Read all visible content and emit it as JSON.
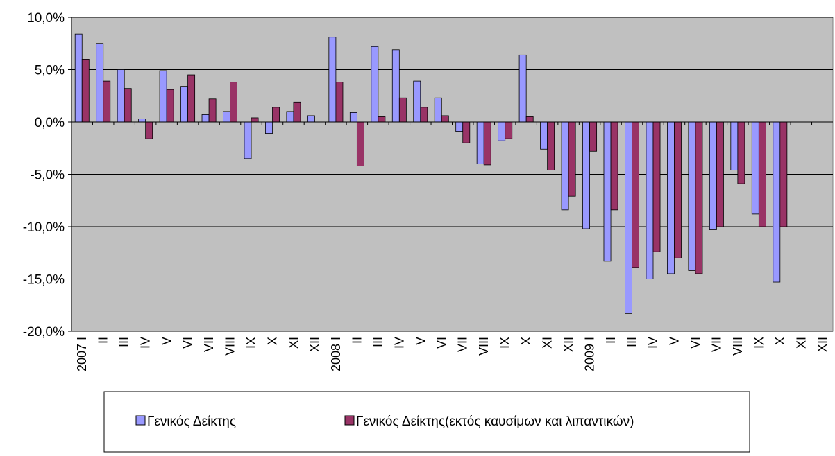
{
  "chart_data": {
    "type": "bar",
    "categories": [
      "2007 I",
      "II",
      "III",
      "IV",
      "V",
      "VI",
      "VII",
      "VIII",
      "IX",
      "X",
      "XI",
      "XII",
      "2008 I",
      "II",
      "III",
      "IV",
      "V",
      "VI",
      "VII",
      "VIII",
      "IX",
      "X",
      "XI",
      "XII",
      "2009 I",
      "II",
      "III",
      "IV",
      "V",
      "VI",
      "VII",
      "VIII",
      "IX",
      "X",
      "XI",
      "XII"
    ],
    "series": [
      {
        "name": "Γενικός Δείκτης",
        "color": "#9999ff",
        "values": [
          8.4,
          7.5,
          5.0,
          0.3,
          4.9,
          3.4,
          0.7,
          1.0,
          -3.5,
          -1.1,
          1.0,
          0.6,
          8.1,
          0.9,
          7.2,
          6.9,
          3.9,
          2.3,
          -0.9,
          -4.0,
          -1.8,
          6.4,
          -2.6,
          -8.4,
          -10.2,
          -13.3,
          -18.3,
          -15.0,
          -14.5,
          -14.2,
          -10.3,
          -4.6,
          -8.8,
          -15.3,
          null,
          null
        ]
      },
      {
        "name": "Γενικός Δείκτης(εκτός καυσίμων και λιπαντικών)",
        "color": "#993366",
        "values": [
          6.0,
          3.9,
          3.2,
          -1.6,
          3.1,
          4.5,
          2.2,
          3.8,
          0.4,
          1.4,
          1.9,
          null,
          3.8,
          -4.2,
          0.5,
          2.3,
          1.4,
          0.6,
          -2.0,
          -4.1,
          -1.6,
          0.5,
          -4.6,
          -7.1,
          -2.8,
          -8.4,
          -13.9,
          -12.4,
          -13.0,
          -14.5,
          -10.0,
          -5.9,
          -10.0,
          -10.0,
          null,
          null
        ]
      }
    ],
    "ylim": [
      -20,
      10
    ],
    "yticks": [
      {
        "value": -20,
        "label": "-20,0%"
      },
      {
        "value": -15,
        "label": "-15,0%"
      },
      {
        "value": -10,
        "label": "-10,0%"
      },
      {
        "value": -5,
        "label": "-5,0%"
      },
      {
        "value": 0,
        "label": "0,0%"
      },
      {
        "value": 5,
        "label": "5,0%"
      },
      {
        "value": 10,
        "label": "10,0%"
      }
    ],
    "grid": true,
    "plot_background": "#c0c0c0"
  }
}
